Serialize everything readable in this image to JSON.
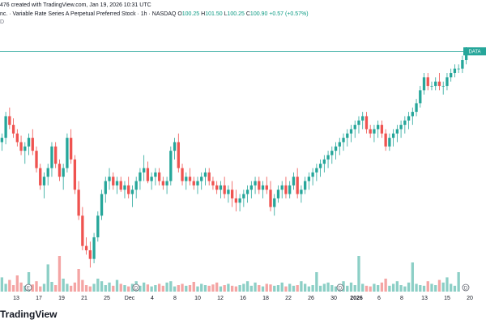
{
  "header": {
    "line1": "476 created with TradingView.com, Jan 19, 2026 10:31 UTC",
    "line2_name": "nc. · Variable Rate Series A Perpetual Preferred Stock · 1h · NASDAQ",
    "ohlc": [
      {
        "label": "O",
        "value": "100.25"
      },
      {
        "label": "H",
        "value": "101.50"
      },
      {
        "label": "L",
        "value": "100.25"
      },
      {
        "label": "C",
        "value": "100.90"
      }
    ],
    "change": "+0.57 (+0.57%)",
    "line3": "D"
  },
  "price_badge": "DATA",
  "logo": "TradingView",
  "colors": {
    "up": "#26a69a",
    "down": "#ef5350",
    "up_volume": "#8ccfc6",
    "down_volume": "#f4a5a4",
    "price_line": "#26a69a",
    "text": "#131722",
    "axis_text": "#131722"
  },
  "chart_data": {
    "type": "candlestick",
    "x_tick_labels": [
      "13",
      "17",
      "19",
      "21",
      "25",
      "Dec",
      "4",
      "8",
      "10",
      "12",
      "16",
      "18",
      "22",
      "26",
      "30",
      "2026",
      "6",
      "8",
      "13",
      "15",
      "20"
    ],
    "x_tick_bold": [
      "2026"
    ],
    "event_markers": [
      "E",
      "D",
      "D",
      "D"
    ],
    "ylim": [
      0,
      100
    ],
    "volume_ylim": [
      0,
      100
    ],
    "candles": [
      [
        56,
        60,
        52,
        58
      ],
      [
        58,
        70,
        55,
        68
      ],
      [
        68,
        72,
        62,
        64
      ],
      [
        64,
        67,
        58,
        60
      ],
      [
        60,
        62,
        54,
        56
      ],
      [
        56,
        59,
        50,
        52
      ],
      [
        52,
        56,
        46,
        54
      ],
      [
        54,
        60,
        50,
        58
      ],
      [
        58,
        62,
        50,
        52
      ],
      [
        52,
        54,
        42,
        44
      ],
      [
        44,
        46,
        34,
        36
      ],
      [
        36,
        42,
        30,
        40
      ],
      [
        40,
        46,
        36,
        44
      ],
      [
        44,
        56,
        40,
        54
      ],
      [
        54,
        56,
        44,
        46
      ],
      [
        46,
        48,
        38,
        40
      ],
      [
        40,
        46,
        34,
        44
      ],
      [
        44,
        60,
        42,
        58
      ],
      [
        58,
        62,
        46,
        48
      ],
      [
        48,
        50,
        32,
        34
      ],
      [
        34,
        38,
        20,
        22
      ],
      [
        22,
        26,
        6,
        8
      ],
      [
        8,
        12,
        4,
        6
      ],
      [
        6,
        10,
        -2,
        2
      ],
      [
        2,
        14,
        0,
        12
      ],
      [
        12,
        24,
        10,
        22
      ],
      [
        22,
        34,
        20,
        32
      ],
      [
        32,
        40,
        28,
        38
      ],
      [
        38,
        44,
        34,
        40
      ],
      [
        40,
        42,
        34,
        36
      ],
      [
        36,
        40,
        32,
        38
      ],
      [
        38,
        40,
        33,
        34
      ],
      [
        34,
        38,
        30,
        36
      ],
      [
        36,
        40,
        30,
        32
      ],
      [
        32,
        36,
        26,
        34
      ],
      [
        34,
        40,
        30,
        38
      ],
      [
        38,
        44,
        34,
        42
      ],
      [
        42,
        50,
        38,
        44
      ],
      [
        44,
        47,
        37,
        38
      ],
      [
        38,
        42,
        34,
        40
      ],
      [
        40,
        44,
        36,
        42
      ],
      [
        42,
        44,
        36,
        38
      ],
      [
        38,
        40,
        34,
        36
      ],
      [
        36,
        40,
        32,
        38
      ],
      [
        38,
        54,
        36,
        52
      ],
      [
        52,
        58,
        48,
        56
      ],
      [
        56,
        60,
        42,
        44
      ],
      [
        44,
        46,
        36,
        38
      ],
      [
        38,
        42,
        34,
        40
      ],
      [
        40,
        44,
        36,
        38
      ],
      [
        38,
        40,
        34,
        36
      ],
      [
        36,
        40,
        32,
        38
      ],
      [
        38,
        42,
        34,
        40
      ],
      [
        40,
        44,
        36,
        42
      ],
      [
        42,
        44,
        36,
        38
      ],
      [
        38,
        40,
        34,
        36
      ],
      [
        36,
        38,
        32,
        34
      ],
      [
        34,
        38,
        30,
        36
      ],
      [
        36,
        40,
        30,
        32
      ],
      [
        32,
        36,
        28,
        34
      ],
      [
        34,
        38,
        26,
        30
      ],
      [
        30,
        34,
        24,
        28
      ],
      [
        28,
        32,
        24,
        30
      ],
      [
        30,
        34,
        26,
        32
      ],
      [
        32,
        36,
        28,
        34
      ],
      [
        34,
        38,
        30,
        36
      ],
      [
        36,
        40,
        32,
        38
      ],
      [
        38,
        40,
        32,
        34
      ],
      [
        34,
        38,
        30,
        36
      ],
      [
        36,
        40,
        32,
        34
      ],
      [
        34,
        38,
        24,
        26
      ],
      [
        26,
        32,
        22,
        30
      ],
      [
        30,
        36,
        28,
        34
      ],
      [
        34,
        38,
        30,
        36
      ],
      [
        36,
        40,
        30,
        32
      ],
      [
        32,
        38,
        30,
        36
      ],
      [
        36,
        42,
        34,
        40
      ],
      [
        40,
        44,
        30,
        32
      ],
      [
        32,
        36,
        28,
        34
      ],
      [
        34,
        40,
        32,
        38
      ],
      [
        38,
        42,
        34,
        40
      ],
      [
        40,
        44,
        36,
        42
      ],
      [
        42,
        46,
        38,
        44
      ],
      [
        44,
        48,
        40,
        46
      ],
      [
        46,
        50,
        42,
        48
      ],
      [
        48,
        52,
        44,
        50
      ],
      [
        50,
        54,
        46,
        52
      ],
      [
        52,
        56,
        48,
        54
      ],
      [
        54,
        58,
        50,
        56
      ],
      [
        56,
        60,
        52,
        58
      ],
      [
        58,
        62,
        54,
        60
      ],
      [
        60,
        64,
        56,
        62
      ],
      [
        62,
        66,
        58,
        64
      ],
      [
        64,
        68,
        60,
        66
      ],
      [
        66,
        70,
        62,
        68
      ],
      [
        68,
        70,
        60,
        62
      ],
      [
        62,
        64,
        58,
        60
      ],
      [
        60,
        64,
        56,
        62
      ],
      [
        62,
        66,
        58,
        64
      ],
      [
        64,
        66,
        58,
        60
      ],
      [
        60,
        62,
        52,
        54
      ],
      [
        54,
        60,
        52,
        58
      ],
      [
        58,
        62,
        54,
        60
      ],
      [
        60,
        64,
        56,
        62
      ],
      [
        62,
        66,
        58,
        64
      ],
      [
        64,
        68,
        60,
        66
      ],
      [
        66,
        70,
        62,
        68
      ],
      [
        68,
        72,
        64,
        70
      ],
      [
        70,
        76,
        68,
        74
      ],
      [
        74,
        82,
        72,
        80
      ],
      [
        80,
        88,
        78,
        86
      ],
      [
        86,
        88,
        80,
        82
      ],
      [
        82,
        84,
        80,
        82
      ],
      [
        82,
        86,
        80,
        84
      ],
      [
        84,
        88,
        80,
        82
      ],
      [
        82,
        84,
        78,
        82
      ],
      [
        82,
        88,
        80,
        86
      ],
      [
        86,
        90,
        84,
        88
      ],
      [
        88,
        92,
        86,
        90
      ],
      [
        90,
        92,
        88,
        90
      ],
      [
        90,
        96,
        88,
        94
      ],
      [
        94,
        100,
        92,
        98
      ]
    ],
    "volume": [
      22,
      12,
      18,
      10,
      25,
      14,
      9,
      30,
      11,
      16,
      8,
      12,
      42,
      15,
      10,
      55,
      20,
      12,
      9,
      14,
      35,
      18,
      10,
      8,
      12,
      20,
      16,
      10,
      14,
      9,
      18,
      12,
      10,
      8,
      12,
      16,
      9,
      14,
      11,
      8,
      10,
      12,
      9,
      14,
      16,
      8,
      10,
      12,
      9,
      10,
      15,
      8,
      12,
      10,
      9,
      11,
      14,
      8,
      10,
      12,
      9,
      8,
      10,
      12,
      16,
      9,
      14,
      10,
      8,
      12,
      11,
      9,
      10,
      14,
      8,
      12,
      9,
      10,
      16,
      12,
      8,
      10,
      30,
      9,
      12,
      14,
      10,
      8,
      12,
      16,
      9,
      14,
      10,
      55,
      12,
      9,
      8,
      12,
      10,
      14,
      20,
      9,
      12,
      16,
      10,
      8,
      14,
      45,
      12,
      10,
      9,
      16,
      12,
      10,
      18,
      14,
      22,
      12,
      9,
      30
    ]
  }
}
